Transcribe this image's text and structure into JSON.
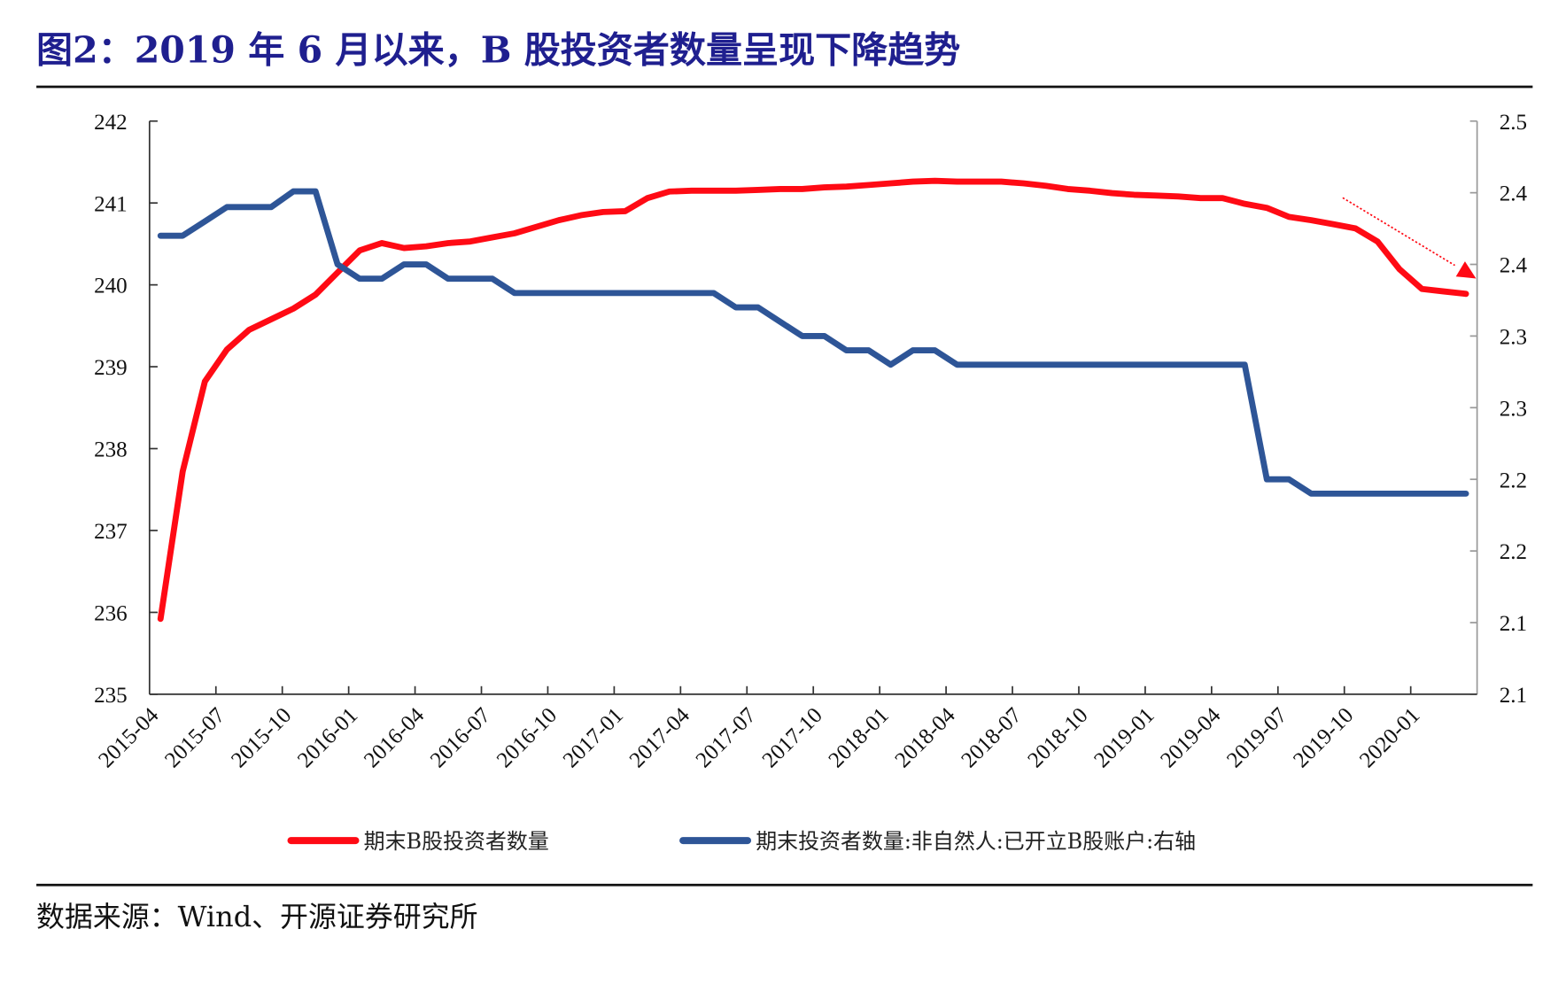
{
  "header": {
    "title": "图2：2019 年 6 月以来，B 股投资者数量呈现下降趋势"
  },
  "footer": {
    "source": "数据来源：Wind、开源证券研究所"
  },
  "colors": {
    "title": "#1f1f8f",
    "series_red": "#ff0a14",
    "series_blue": "#2e5597",
    "axis": "#333333",
    "right_axis": "#999999"
  },
  "chart_data": {
    "type": "line",
    "title": "图2：2019 年 6 月以来，B 股投资者数量呈现下降趋势",
    "xlabel": "",
    "ylabel": "",
    "ylabel_right": "",
    "grid": false,
    "legend_position": "bottom",
    "ylim": [
      235,
      242
    ],
    "ylim_right": [
      2.1,
      2.5
    ],
    "yticks": [
      "242",
      "241",
      "240",
      "239",
      "238",
      "237",
      "236",
      "235"
    ],
    "yticks_right": [
      "2.5",
      "2.4",
      "2.4",
      "2.3",
      "2.3",
      "2.2",
      "2.2",
      "2.1",
      "2.1"
    ],
    "xtick_labels": [
      "2015-04",
      "2015-07",
      "2015-10",
      "2016-01",
      "2016-04",
      "2016-07",
      "2016-10",
      "2017-01",
      "2017-04",
      "2017-07",
      "2017-10",
      "2018-01",
      "2018-04",
      "2018-07",
      "2018-10",
      "2019-01",
      "2019-04",
      "2019-07",
      "2019-10",
      "2020-01"
    ],
    "x": [
      "2015-04",
      "2015-05",
      "2015-06",
      "2015-07",
      "2015-08",
      "2015-09",
      "2015-10",
      "2015-11",
      "2015-12",
      "2016-01",
      "2016-02",
      "2016-03",
      "2016-04",
      "2016-05",
      "2016-06",
      "2016-07",
      "2016-08",
      "2016-09",
      "2016-10",
      "2016-11",
      "2016-12",
      "2017-01",
      "2017-02",
      "2017-03",
      "2017-04",
      "2017-05",
      "2017-06",
      "2017-07",
      "2017-08",
      "2017-09",
      "2017-10",
      "2017-11",
      "2017-12",
      "2018-01",
      "2018-02",
      "2018-03",
      "2018-04",
      "2018-05",
      "2018-06",
      "2018-07",
      "2018-08",
      "2018-09",
      "2018-10",
      "2018-11",
      "2018-12",
      "2019-01",
      "2019-02",
      "2019-03",
      "2019-04",
      "2019-05",
      "2019-06",
      "2019-07",
      "2019-08",
      "2019-09",
      "2019-10",
      "2019-11",
      "2019-12",
      "2020-01",
      "2020-02",
      "2020-03"
    ],
    "series": [
      {
        "name": "期末B股投资者数量",
        "axis": "left",
        "color": "#ff0a14",
        "values": [
          235.92,
          237.72,
          238.82,
          239.21,
          239.45,
          239.58,
          239.71,
          239.88,
          240.15,
          240.42,
          240.51,
          240.45,
          240.47,
          240.51,
          240.53,
          240.58,
          240.63,
          240.71,
          240.79,
          240.85,
          240.89,
          240.9,
          241.06,
          241.14,
          241.15,
          241.15,
          241.15,
          241.16,
          241.17,
          241.17,
          241.19,
          241.2,
          241.22,
          241.24,
          241.26,
          241.27,
          241.26,
          241.26,
          241.26,
          241.24,
          241.21,
          241.17,
          241.15,
          241.12,
          241.1,
          241.09,
          241.08,
          241.06,
          241.06,
          240.99,
          240.94,
          240.83,
          240.79,
          240.74,
          240.69,
          240.53,
          240.19,
          239.95,
          239.92,
          239.89
        ]
      },
      {
        "name": "期末投资者数量:非自然人:已开立B股账户:右轴",
        "axis": "right",
        "color": "#2e5597",
        "values": [
          2.42,
          2.42,
          2.43,
          2.44,
          2.44,
          2.44,
          2.451,
          2.451,
          2.4,
          2.39,
          2.39,
          2.4,
          2.4,
          2.39,
          2.39,
          2.39,
          2.38,
          2.38,
          2.38,
          2.38,
          2.38,
          2.38,
          2.38,
          2.38,
          2.38,
          2.38,
          2.37,
          2.37,
          2.36,
          2.35,
          2.35,
          2.34,
          2.34,
          2.33,
          2.34,
          2.34,
          2.33,
          2.33,
          2.33,
          2.33,
          2.33,
          2.33,
          2.33,
          2.33,
          2.33,
          2.33,
          2.33,
          2.33,
          2.33,
          2.33,
          2.25,
          2.25,
          2.24,
          2.24,
          2.24,
          2.24,
          2.24,
          2.24,
          2.24,
          2.24
        ]
      }
    ],
    "annotations": [
      {
        "type": "arrow",
        "style": "dotted",
        "color": "#ff0a14",
        "description": "downward trend arrow from 2019-10 toward 2020-03"
      }
    ]
  }
}
